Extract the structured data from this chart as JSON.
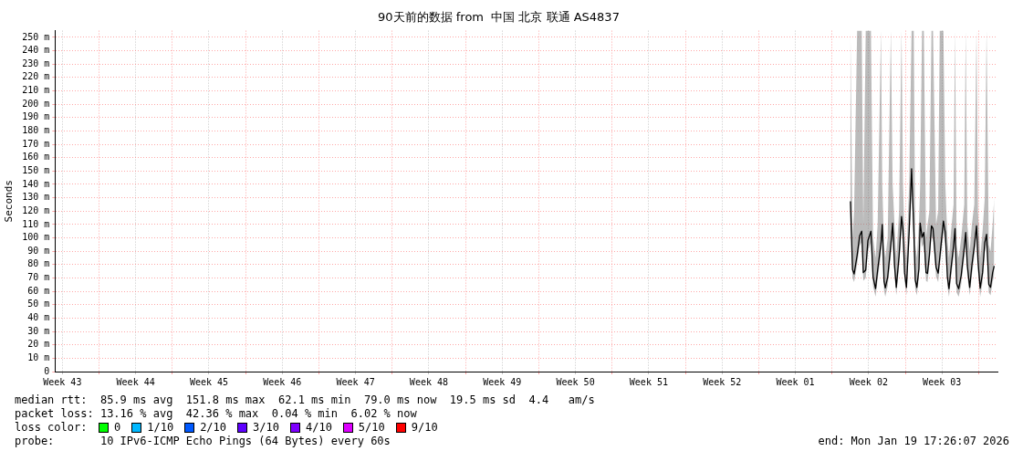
{
  "chart_data": {
    "type": "line",
    "title": "90天前的数据 from  中国 北京 联通 AS4837",
    "ylabel": "Seconds",
    "x": [
      "2026-01-05T16:28",
      "2026-01-05T21:16",
      "2026-01-06T00:52",
      "2026-01-06T07:50",
      "2026-01-06T13:35",
      "2026-01-06T18:23",
      "2026-01-06T21:59",
      "2026-01-07T03:31",
      "2026-01-07T08:33",
      "2026-01-07T15:31",
      "2026-01-07T20:19",
      "2026-01-08T02:04",
      "2026-01-08T06:52",
      "2026-01-08T14:33",
      "2026-01-08T17:26",
      "2026-01-08T21:31",
      "2026-01-09T00:23",
      "2026-01-09T05:55",
      "2026-01-09T13:07",
      "2026-01-09T17:11",
      "2026-01-09T21:31",
      "2026-01-10T01:35",
      "2026-01-10T08:04",
      "2026-01-10T13:35",
      "2026-01-10T16:57",
      "2026-01-10T20:33",
      "2026-01-11T00:52",
      "2026-01-11T07:07",
      "2026-01-11T12:38",
      "2026-01-11T17:40",
      "2026-01-11T21:02",
      "2026-01-12T00:38",
      "2026-01-12T05:26",
      "2026-01-12T08:19",
      "2026-01-12T12:38",
      "2026-01-12T16:43",
      "2026-01-12T21:45",
      "2026-01-13T01:07",
      "2026-01-13T05:26",
      "2026-01-13T10:14",
      "2026-01-13T13:50",
      "2026-01-13T20:47",
      "2026-01-14T01:35",
      "2026-01-14T05:11",
      "2026-01-14T13:35",
      "2026-01-14T17:55",
      "2026-01-14T22:43",
      "2026-01-15T02:19",
      "2026-01-15T07:07",
      "2026-01-15T12:52",
      "2026-01-15T16:14",
      "2026-01-15T19:50",
      "2026-01-16T00:38",
      "2026-01-16T06:23",
      "2026-01-16T13:21",
      "2026-01-16T16:43",
      "2026-01-16T20:19",
      "2026-01-17T01:50",
      "2026-01-17T06:52",
      "2026-01-17T12:23",
      "2026-01-17T17:26",
      "2026-01-17T20:47",
      "2026-01-18T01:50",
      "2026-01-18T07:21",
      "2026-01-18T12:23",
      "2026-01-18T16:28",
      "2026-01-18T21:31",
      "2026-01-19T01:35",
      "2026-01-19T06:23",
      "2026-01-19T09:59"
    ],
    "series": [
      {
        "color": "#000000",
        "values": [
          127.4,
          76.3,
          73,
          87,
          101.6,
          105,
          74,
          76,
          98,
          105,
          70.8,
          62,
          76,
          96,
          110,
          67.5,
          62.6,
          70.8,
          95,
          111,
          79.6,
          63,
          86.8,
          116,
          106,
          74,
          63,
          105,
          151.7,
          106,
          68.6,
          63,
          76.7,
          111,
          100.5,
          104,
          74,
          73.4,
          87,
          109,
          107,
          78,
          73.6,
          85,
          112.6,
          104,
          70.8,
          62,
          77.4,
          94,
          107,
          65.7,
          62,
          72,
          92.8,
          104,
          79.6,
          63,
          79.6,
          94,
          109,
          82.9,
          62.4,
          74,
          96.6,
          102.7,
          65.3,
          63,
          74,
          79
        ],
        "lower": [
          120,
          70,
          67,
          80,
          94,
          97,
          68,
          70,
          90,
          97,
          64,
          56,
          69,
          88,
          102,
          61,
          56,
          64,
          87,
          103,
          72,
          57,
          79,
          107,
          98,
          68,
          57,
          97,
          140,
          98,
          62,
          57,
          70,
          103,
          93,
          96,
          68,
          67,
          80,
          101,
          99,
          71,
          67,
          78,
          104,
          96,
          64,
          56,
          70,
          86,
          99,
          59,
          56,
          65,
          85,
          96,
          72,
          57,
          72,
          86,
          101,
          75,
          56,
          67,
          89,
          95,
          59,
          57,
          67,
          72
        ],
        "upper": [
          255,
          100,
          120,
          255,
          255,
          255,
          110,
          255,
          255,
          255,
          100,
          85,
          110,
          255,
          140,
          95,
          85,
          100,
          255,
          140,
          110,
          85,
          120,
          255,
          140,
          100,
          85,
          140,
          255,
          255,
          95,
          85,
          110,
          140,
          255,
          255,
          100,
          110,
          120,
          255,
          255,
          110,
          120,
          255,
          255,
          140,
          100,
          85,
          105,
          125,
          255,
          95,
          85,
          100,
          125,
          255,
          110,
          90,
          110,
          125,
          255,
          120,
          85,
          105,
          130,
          255,
          95,
          90,
          110,
          130
        ]
      }
    ],
    "xlim": [
      "2025-10-21T17:26",
      "2026-01-19T17:26"
    ],
    "xticks": [
      {
        "value": "2025-10-22T10:14",
        "label": "Week 43"
      },
      {
        "value": "2025-10-25T22:14",
        "label": null
      },
      {
        "value": "2025-10-29T10:14",
        "label": "Week 44"
      },
      {
        "value": "2025-11-01T22:14",
        "label": null
      },
      {
        "value": "2025-11-05T10:14",
        "label": "Week 45"
      },
      {
        "value": "2025-11-08T22:14",
        "label": null
      },
      {
        "value": "2025-11-12T10:14",
        "label": "Week 46"
      },
      {
        "value": "2025-11-15T22:14",
        "label": null
      },
      {
        "value": "2025-11-19T10:14",
        "label": "Week 47"
      },
      {
        "value": "2025-11-22T22:14",
        "label": null
      },
      {
        "value": "2025-11-26T10:14",
        "label": "Week 48"
      },
      {
        "value": "2025-11-29T22:14",
        "label": null
      },
      {
        "value": "2025-12-03T10:14",
        "label": "Week 49"
      },
      {
        "value": "2025-12-06T22:14",
        "label": null
      },
      {
        "value": "2025-12-10T10:14",
        "label": "Week 50"
      },
      {
        "value": "2025-12-13T22:14",
        "label": null
      },
      {
        "value": "2025-12-17T10:14",
        "label": "Week 51"
      },
      {
        "value": "2025-12-20T22:14",
        "label": null
      },
      {
        "value": "2025-12-24T10:14",
        "label": "Week 52"
      },
      {
        "value": "2025-12-27T22:14",
        "label": null
      },
      {
        "value": "2025-12-31T10:14",
        "label": "Week 01"
      },
      {
        "value": "2026-01-03T22:14",
        "label": null
      },
      {
        "value": "2026-01-07T10:14",
        "label": "Week 02"
      },
      {
        "value": "2026-01-10T22:14",
        "label": null
      },
      {
        "value": "2026-01-14T10:14",
        "label": "Week 03"
      },
      {
        "value": "2026-01-17T22:14",
        "label": null
      }
    ],
    "ylim": [
      0,
      255
    ],
    "yticks": [
      0,
      {
        "value": 10,
        "label": "10 m"
      },
      {
        "value": 20,
        "label": "20 m"
      },
      {
        "value": 30,
        "label": "30 m"
      },
      {
        "value": 40,
        "label": "40 m"
      },
      {
        "value": 50,
        "label": "50 m"
      },
      {
        "value": 60,
        "label": "60 m"
      },
      {
        "value": 70,
        "label": "70 m"
      },
      {
        "value": 80,
        "label": "80 m"
      },
      {
        "value": 90,
        "label": "90 m"
      },
      {
        "value": 100,
        "label": "100 m"
      },
      {
        "value": 110,
        "label": "110 m"
      },
      {
        "value": 120,
        "label": "120 m"
      },
      {
        "value": 130,
        "label": "130 m"
      },
      {
        "value": 140,
        "label": "140 m"
      },
      {
        "value": 150,
        "label": "150 m"
      },
      {
        "value": 160,
        "label": "160 m"
      },
      {
        "value": 170,
        "label": "170 m"
      },
      {
        "value": 180,
        "label": "180 m"
      },
      {
        "value": 190,
        "label": "190 m"
      },
      {
        "value": 200,
        "label": "200 m"
      },
      {
        "value": 210,
        "label": "210 m"
      },
      {
        "value": 220,
        "label": "220 m"
      },
      {
        "value": 230,
        "label": "230 m"
      },
      {
        "value": 240,
        "label": "240 m"
      },
      {
        "value": 250,
        "label": "250 m"
      }
    ],
    "grid": true,
    "legend": false,
    "marker": "none",
    "line_style": "solid",
    "annotations": [
      "median rtt:  85.9 ms avg  151.8 ms max  62.1 ms min  79.0 ms now  19.5 ms sd  4.4   am/s",
      "packet loss: 13.16 % avg  42.36 % max  0.04 % min  6.02 % now",
      "loss color:",
      "0",
      "1/10",
      "2/10",
      "3/10",
      "4/10",
      "5/10",
      "9/10",
      "probe:       10 IPv6-ICMP Echo Pings (64 Bytes) every 60s",
      "end: Mon Jan 19 17:26:07 2026"
    ]
  }
}
